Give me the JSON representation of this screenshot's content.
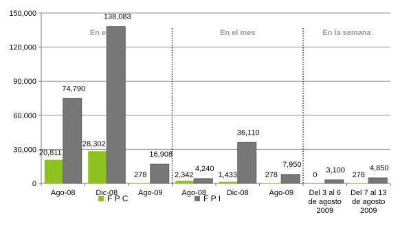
{
  "chart_data": {
    "type": "bar",
    "categories": [
      "Ago-08",
      "Dic-08",
      "Ago-09",
      "Ago-08",
      "Dic-08",
      "Ago-09",
      "Del 3 al 6 de agosto 2009",
      "Del 7 al 13 de agosto 2009"
    ],
    "category_lines": [
      [
        "Ago-08"
      ],
      [
        "Dic-08"
      ],
      [
        "Ago-09"
      ],
      [
        "Ago-08"
      ],
      [
        "Dic-08"
      ],
      [
        "Ago-09"
      ],
      [
        "Del 3 al 6",
        "de agosto",
        "2009"
      ],
      [
        "Del 7 al 13",
        "de agosto",
        "2009"
      ]
    ],
    "series": [
      {
        "name": "F P C",
        "color": "#8dc21f",
        "values": [
          20811,
          28302,
          278,
          2342,
          1433,
          278,
          0,
          278
        ],
        "labels": [
          "20,811",
          "28,302",
          "278",
          "2,342",
          "1,433",
          "278",
          "0",
          "278"
        ]
      },
      {
        "name": "F P I",
        "color": "#777777",
        "values": [
          74790,
          138083,
          16908,
          4240,
          36110,
          7950,
          3100,
          4850
        ],
        "labels": [
          "74,790",
          "138,083",
          "16,908",
          "4,240",
          "36,110",
          "7,950",
          "3,100",
          "4,850"
        ]
      }
    ],
    "ylim": [
      0,
      150000
    ],
    "yticks": [
      0,
      30000,
      60000,
      90000,
      120000,
      150000
    ],
    "ytick_labels": [
      "0",
      "30,000",
      "60,000",
      "90,000",
      "120,000",
      "150,000"
    ],
    "grid": true,
    "legend_position": "bottom",
    "sections": [
      {
        "label": "En el año",
        "from": 0,
        "to": 2
      },
      {
        "label": "En el mes",
        "from": 3,
        "to": 5
      },
      {
        "label": "En la semana",
        "from": 6,
        "to": 7
      }
    ],
    "xlabel": "",
    "ylabel": ""
  }
}
